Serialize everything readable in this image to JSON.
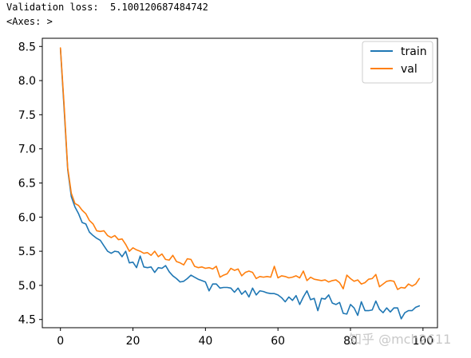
{
  "output": {
    "line1": "Validation loss:  5.100120687484742",
    "line2": "<Axes: >"
  },
  "watermark": "知乎 @mch2611",
  "colors": {
    "train": "#1f77b4",
    "val": "#ff7f0e",
    "axis": "#000000"
  },
  "chart_data": {
    "type": "line",
    "title": "",
    "xlabel": "",
    "ylabel": "",
    "xlim": [
      -5,
      104
    ],
    "ylim": [
      4.38,
      8.62
    ],
    "xticks": [
      0,
      20,
      40,
      60,
      80,
      100
    ],
    "yticks": [
      4.5,
      5.0,
      5.5,
      6.0,
      6.5,
      7.0,
      7.5,
      8.0,
      8.5
    ],
    "grid": false,
    "legend_position": "top-right",
    "x": [
      0,
      1,
      2,
      3,
      4,
      5,
      6,
      7,
      8,
      9,
      10,
      11,
      12,
      13,
      14,
      15,
      16,
      17,
      18,
      19,
      20,
      21,
      22,
      23,
      24,
      25,
      26,
      27,
      28,
      29,
      30,
      31,
      32,
      33,
      34,
      35,
      36,
      37,
      38,
      39,
      40,
      41,
      42,
      43,
      44,
      45,
      46,
      47,
      48,
      49,
      50,
      51,
      52,
      53,
      54,
      55,
      56,
      57,
      58,
      59,
      60,
      61,
      62,
      63,
      64,
      65,
      66,
      67,
      68,
      69,
      70,
      71,
      72,
      73,
      74,
      75,
      76,
      77,
      78,
      79,
      80,
      81,
      82,
      83,
      84,
      85,
      86,
      87,
      88,
      89,
      90,
      91,
      92,
      93,
      94,
      95,
      96,
      97,
      98,
      99
    ],
    "series": [
      {
        "name": "train",
        "values": [
          8.47,
          7.6,
          6.7,
          6.3,
          6.15,
          6.05,
          5.92,
          5.9,
          5.78,
          5.73,
          5.69,
          5.66,
          5.58,
          5.5,
          5.47,
          5.5,
          5.49,
          5.42,
          5.5,
          5.33,
          5.34,
          5.26,
          5.43,
          5.27,
          5.26,
          5.27,
          5.19,
          5.26,
          5.25,
          5.29,
          5.2,
          5.14,
          5.1,
          5.05,
          5.06,
          5.1,
          5.15,
          5.12,
          5.09,
          5.07,
          5.05,
          4.92,
          5.02,
          5.02,
          4.96,
          4.97,
          4.97,
          4.96,
          4.9,
          4.96,
          4.87,
          4.92,
          4.83,
          4.96,
          4.86,
          4.92,
          4.91,
          4.89,
          4.88,
          4.88,
          4.86,
          4.82,
          4.76,
          4.83,
          4.78,
          4.85,
          4.72,
          4.83,
          4.92,
          4.79,
          4.81,
          4.63,
          4.81,
          4.8,
          4.86,
          4.74,
          4.72,
          4.75,
          4.59,
          4.58,
          4.72,
          4.67,
          4.56,
          4.76,
          4.63,
          4.63,
          4.64,
          4.77,
          4.65,
          4.6,
          4.67,
          4.61,
          4.67,
          4.67,
          4.51,
          4.6,
          4.63,
          4.63,
          4.68,
          4.7
        ]
      },
      {
        "name": "val",
        "values": [
          8.48,
          7.65,
          6.72,
          6.35,
          6.2,
          6.17,
          6.1,
          6.05,
          5.95,
          5.9,
          5.8,
          5.79,
          5.8,
          5.73,
          5.7,
          5.73,
          5.67,
          5.68,
          5.6,
          5.5,
          5.55,
          5.52,
          5.5,
          5.47,
          5.48,
          5.44,
          5.5,
          5.42,
          5.46,
          5.38,
          5.37,
          5.44,
          5.35,
          5.33,
          5.3,
          5.39,
          5.38,
          5.28,
          5.26,
          5.27,
          5.25,
          5.26,
          5.24,
          5.28,
          5.12,
          5.15,
          5.17,
          5.25,
          5.22,
          5.24,
          5.14,
          5.19,
          5.21,
          5.19,
          5.1,
          5.13,
          5.12,
          5.13,
          5.12,
          5.28,
          5.11,
          5.14,
          5.13,
          5.11,
          5.12,
          5.14,
          5.11,
          5.21,
          5.07,
          5.12,
          5.09,
          5.08,
          5.07,
          5.08,
          5.05,
          5.07,
          5.08,
          5.04,
          4.95,
          5.15,
          5.1,
          5.06,
          5.08,
          5.02,
          5.04,
          5.09,
          5.1,
          5.16,
          4.98,
          5.02,
          5.06,
          5.07,
          5.06,
          4.94,
          4.97,
          4.96,
          5.02,
          4.99,
          5.02,
          5.1
        ]
      }
    ]
  }
}
